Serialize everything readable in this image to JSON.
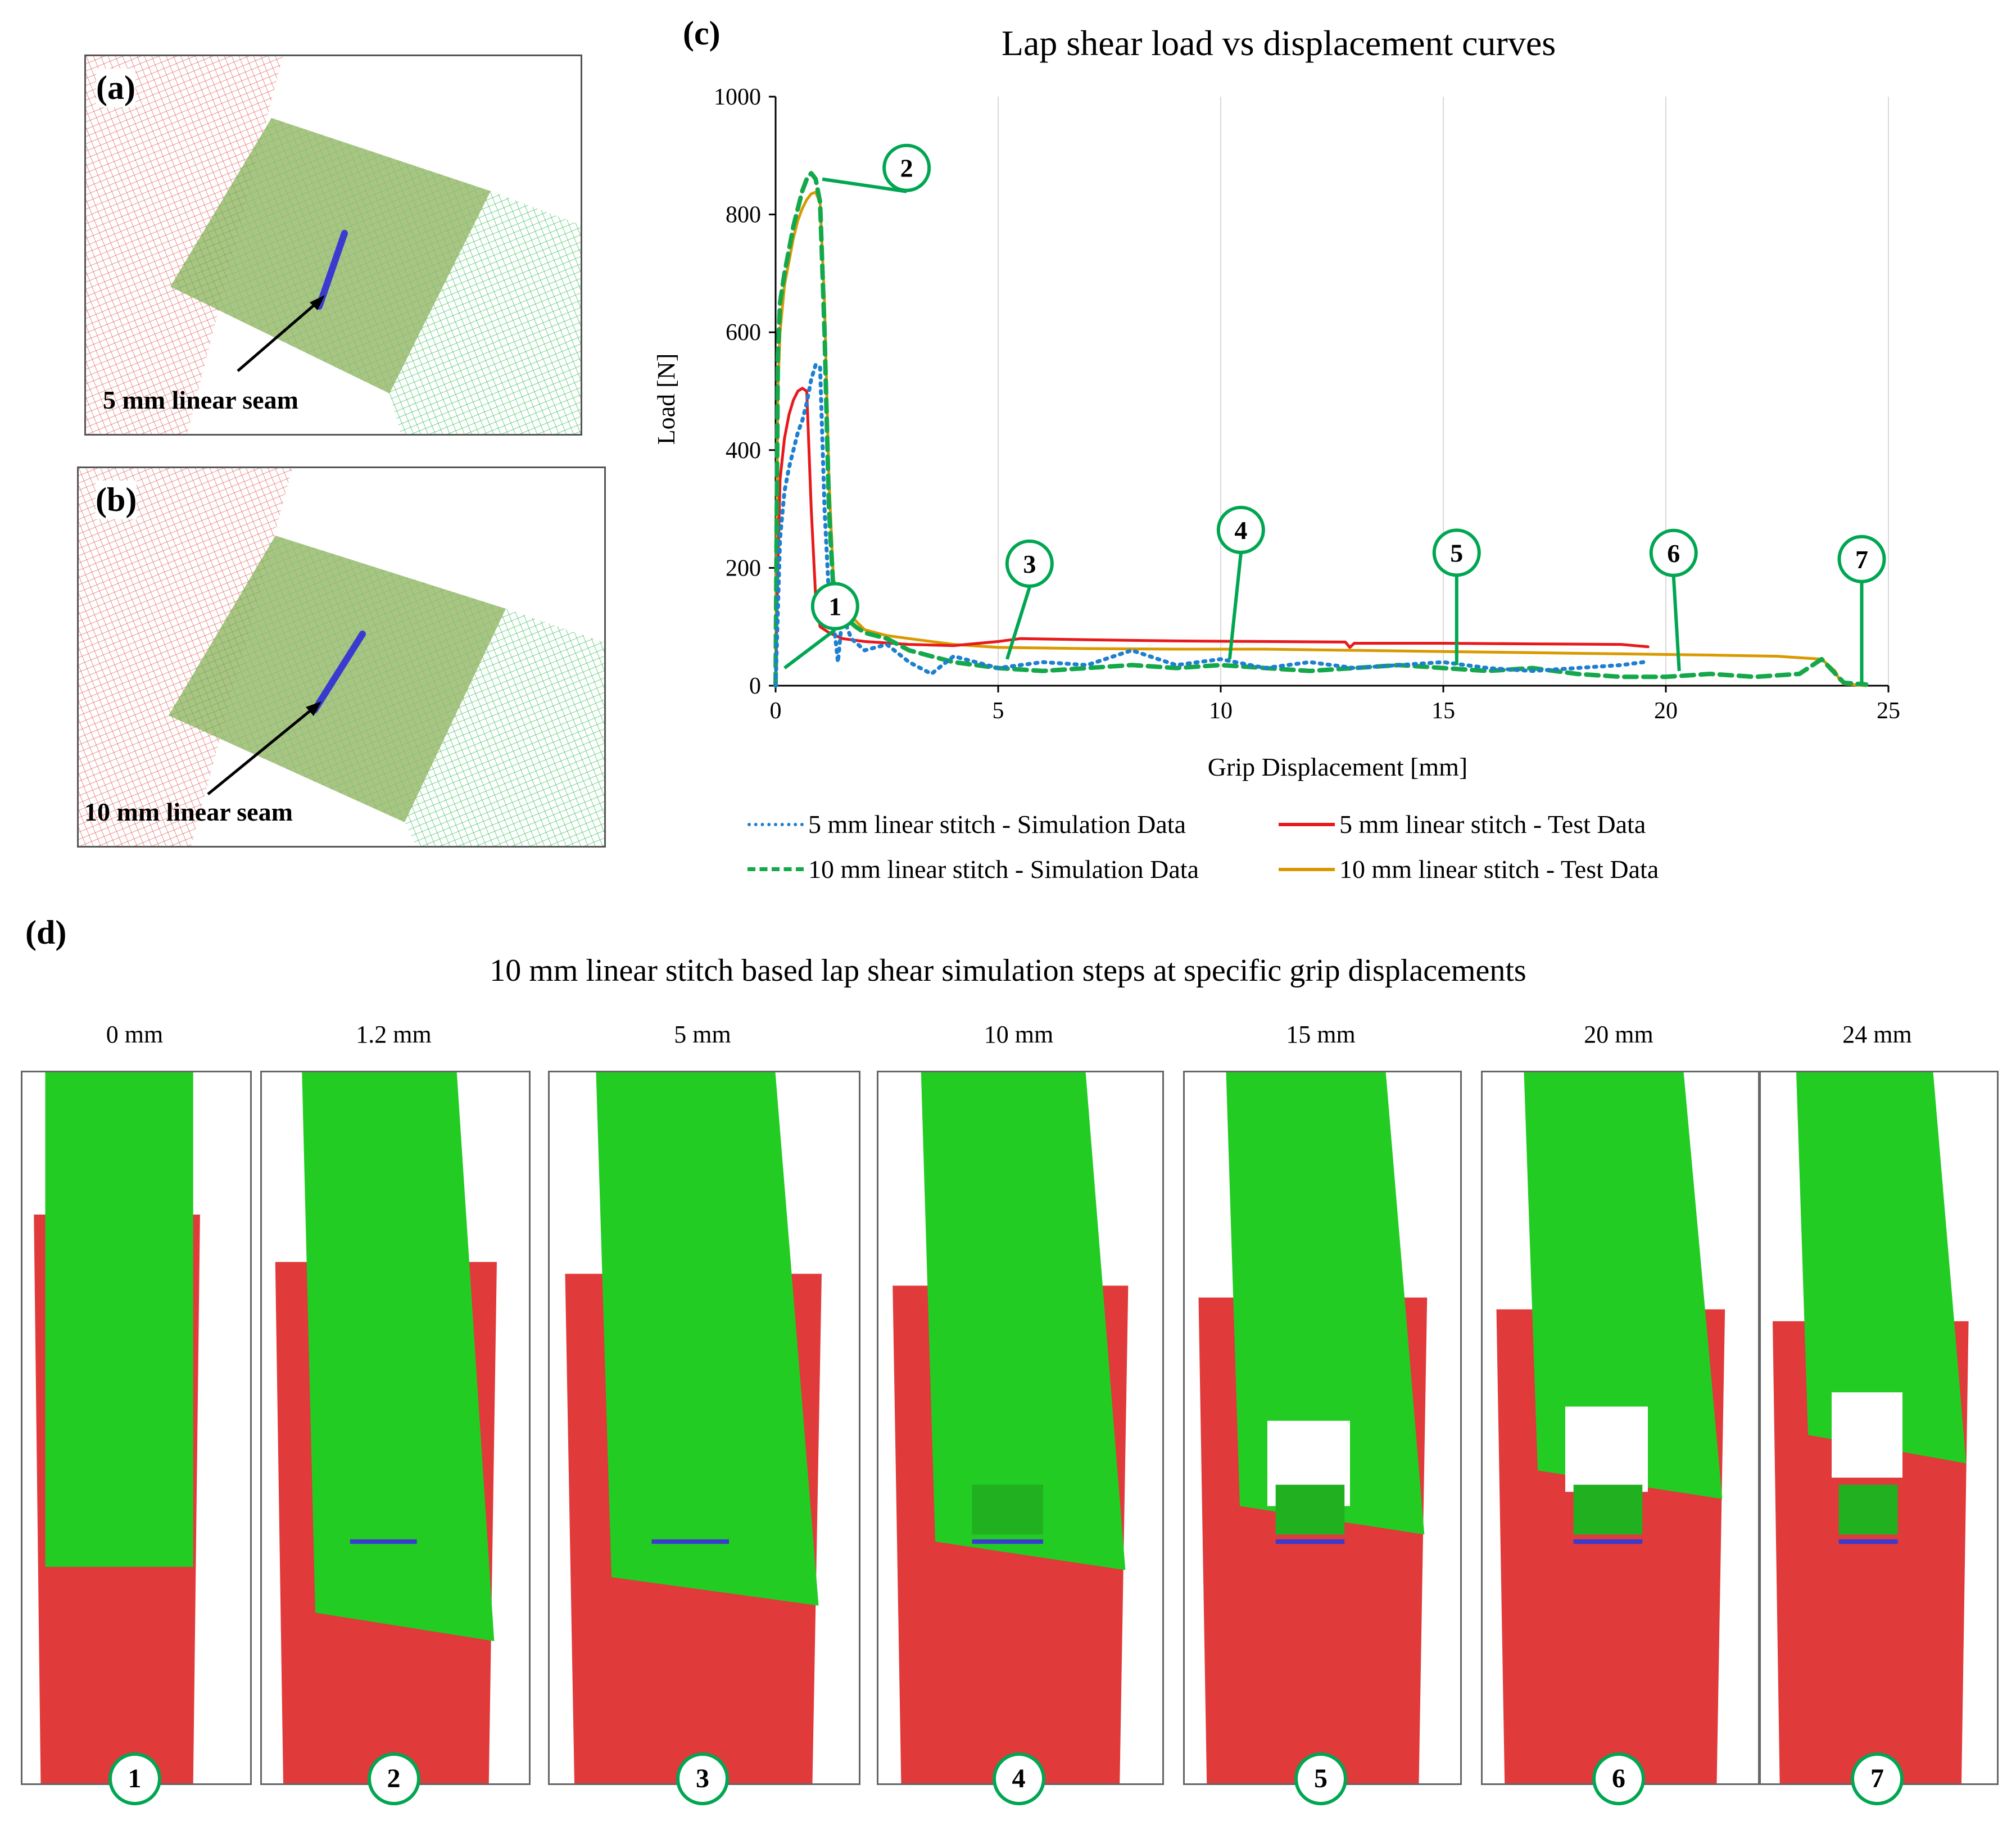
{
  "panels": {
    "a": {
      "letter": "(a)",
      "label": "5 mm linear seam"
    },
    "b": {
      "letter": "(b)",
      "label": "10 mm linear seam"
    },
    "c": {
      "letter": "(c)"
    },
    "d": {
      "letter": "(d)",
      "title": "10 mm linear stitch based lap shear simulation steps at specific grip displacements"
    }
  },
  "colors": {
    "red_sheet": "#e03a3a",
    "green_sheet": "#22cc22",
    "sim5": "#1e7fd0",
    "test5": "#e8191b",
    "sim10": "#14a84b",
    "test10": "#d99a00",
    "marker": "#00a651",
    "seam": "#3a3ad0"
  },
  "chart_data": {
    "type": "line",
    "title": "Lap shear load vs displacement curves",
    "xlabel": "Grip Displacement [mm]",
    "ylabel": "Load [N]",
    "xlim": [
      0,
      25
    ],
    "ylim": [
      0,
      1000
    ],
    "xticks": [
      "0",
      "5",
      "10",
      "15",
      "20",
      "25"
    ],
    "yticks": [
      "0",
      "200",
      "400",
      "600",
      "800",
      "1000"
    ],
    "grid": "vertical",
    "legend_position": "bottom",
    "series": [
      {
        "name": "5 mm linear stitch - Simulation Data",
        "style": "dotted",
        "x": [
          0,
          0.1,
          0.2,
          0.3,
          0.4,
          0.5,
          0.6,
          0.7,
          0.8,
          0.9,
          1.0,
          1.1,
          1.2,
          1.3,
          1.4,
          1.5,
          1.7,
          2.0,
          2.5,
          3.0,
          3.5,
          4.0,
          5.0,
          6.0,
          7.0,
          8.0,
          9.0,
          10.0,
          11.0,
          12.0,
          13.0,
          14.0,
          15.0,
          16.0,
          17.0,
          18.0,
          19.0,
          19.5
        ],
        "y": [
          0,
          250,
          330,
          370,
          400,
          430,
          450,
          480,
          520,
          545,
          540,
          300,
          150,
          110,
          40,
          120,
          80,
          60,
          70,
          40,
          20,
          50,
          30,
          40,
          35,
          60,
          35,
          45,
          30,
          40,
          30,
          35,
          40,
          30,
          25,
          30,
          35,
          40
        ]
      },
      {
        "name": "5 mm linear stitch - Test Data",
        "style": "solid",
        "x": [
          0,
          0.05,
          0.1,
          0.2,
          0.3,
          0.4,
          0.5,
          0.6,
          0.7,
          0.8,
          0.9,
          1.0,
          1.2,
          1.5,
          2.0,
          3.0,
          4.0,
          5.0,
          5.5,
          7.0,
          9.0,
          11.0,
          12.8,
          12.9,
          13.0,
          15.0,
          17.0,
          19.0,
          19.6
        ],
        "y": [
          0,
          200,
          350,
          420,
          460,
          485,
          500,
          505,
          500,
          300,
          150,
          100,
          90,
          80,
          75,
          70,
          68,
          75,
          80,
          78,
          76,
          75,
          74,
          65,
          72,
          72,
          71,
          70,
          66
        ]
      },
      {
        "name": "10 mm linear stitch - Simulation Data",
        "style": "dashed",
        "x": [
          0,
          0.05,
          0.1,
          0.2,
          0.3,
          0.4,
          0.5,
          0.6,
          0.7,
          0.8,
          0.9,
          1.0,
          1.1,
          1.2,
          1.3,
          1.4,
          1.5,
          1.8,
          2.0,
          2.5,
          3.0,
          4.0,
          5.0,
          6.0,
          7.0,
          8.0,
          9.0,
          10.0,
          11.0,
          12.0,
          13.0,
          14.0,
          15.0,
          16.0,
          17.0,
          18.0,
          19.0,
          20.0,
          21.0,
          22.0,
          23.0,
          23.5,
          24.0,
          24.5
        ],
        "y": [
          0,
          560,
          650,
          700,
          740,
          780,
          810,
          840,
          860,
          870,
          860,
          820,
          600,
          300,
          160,
          140,
          120,
          100,
          90,
          80,
          60,
          40,
          30,
          25,
          30,
          35,
          30,
          35,
          30,
          25,
          30,
          35,
          30,
          25,
          30,
          20,
          15,
          15,
          20,
          15,
          20,
          45,
          5,
          2
        ]
      },
      {
        "name": "10 mm linear stitch - Test Data",
        "style": "solid",
        "x": [
          0,
          0.05,
          0.1,
          0.2,
          0.3,
          0.4,
          0.5,
          0.6,
          0.7,
          0.8,
          0.9,
          1.0,
          1.1,
          1.2,
          1.3,
          1.5,
          1.8,
          2.0,
          2.5,
          3.0,
          4.0,
          5.0,
          7.0,
          9.0,
          11.0,
          13.0,
          15.0,
          17.0,
          19.0,
          21.0,
          22.5,
          23.5,
          23.8,
          23.9,
          24.0,
          24.5
        ],
        "y": [
          0,
          500,
          600,
          680,
          720,
          760,
          790,
          810,
          825,
          835,
          838,
          820,
          650,
          350,
          180,
          140,
          110,
          95,
          85,
          80,
          70,
          65,
          63,
          62,
          62,
          60,
          58,
          56,
          54,
          52,
          50,
          45,
          25,
          10,
          3,
          0
        ]
      }
    ],
    "annotations": [
      {
        "label": "1",
        "x": 0.2,
        "y": 30
      },
      {
        "label": "2",
        "x": 1.05,
        "y": 860
      },
      {
        "label": "3",
        "x": 5.2,
        "y": 45
      },
      {
        "label": "4",
        "x": 10.2,
        "y": 45
      },
      {
        "label": "5",
        "x": 15.3,
        "y": 35
      },
      {
        "label": "6",
        "x": 20.3,
        "y": 25
      },
      {
        "label": "7",
        "x": 24.4,
        "y": 5
      }
    ]
  },
  "steps": [
    {
      "label": "0 mm",
      "marker": "1"
    },
    {
      "label": "1.2 mm",
      "marker": "2"
    },
    {
      "label": "5 mm",
      "marker": "3"
    },
    {
      "label": "10 mm",
      "marker": "4"
    },
    {
      "label": "15 mm",
      "marker": "5"
    },
    {
      "label": "20 mm",
      "marker": "6"
    },
    {
      "label": "24 mm",
      "marker": "7"
    }
  ]
}
